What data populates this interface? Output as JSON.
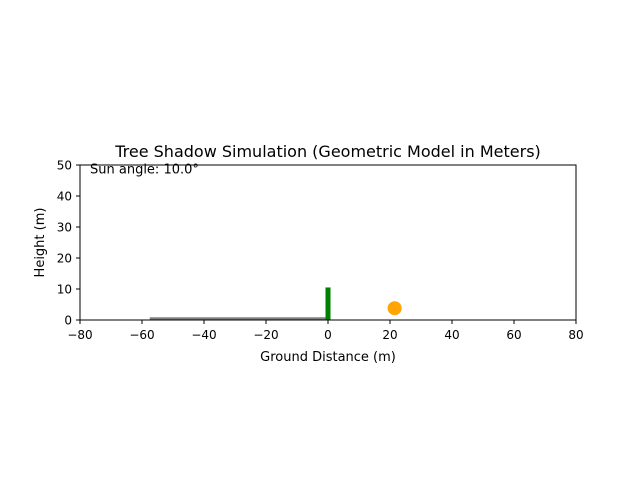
{
  "chart_data": {
    "type": "scatter",
    "title": "Tree Shadow Simulation (Geometric Model in Meters)",
    "xlabel": "Ground Distance (m)",
    "ylabel": "Height (m)",
    "xlim": [
      -80,
      80
    ],
    "ylim": [
      0,
      50
    ],
    "xticks": [
      -80,
      -60,
      -40,
      -20,
      0,
      20,
      40,
      60,
      80
    ],
    "xtick_labels": [
      "−80",
      "−60",
      "−40",
      "−20",
      "0",
      "20",
      "40",
      "60",
      "80"
    ],
    "yticks": [
      0,
      10,
      20,
      30,
      40,
      50
    ],
    "ytick_labels": [
      "0",
      "10",
      "20",
      "30",
      "40",
      "50"
    ],
    "grid": false,
    "annotation": "Sun angle: 10.0°",
    "tree": {
      "x": 0,
      "height": 10.5,
      "color": "#008000"
    },
    "shadow": {
      "x_start": -57.5,
      "x_end": 0,
      "y": 0.5,
      "color": "#808080"
    },
    "sun": {
      "x": 21.5,
      "y": 3.8,
      "color": "#ffa500"
    }
  }
}
